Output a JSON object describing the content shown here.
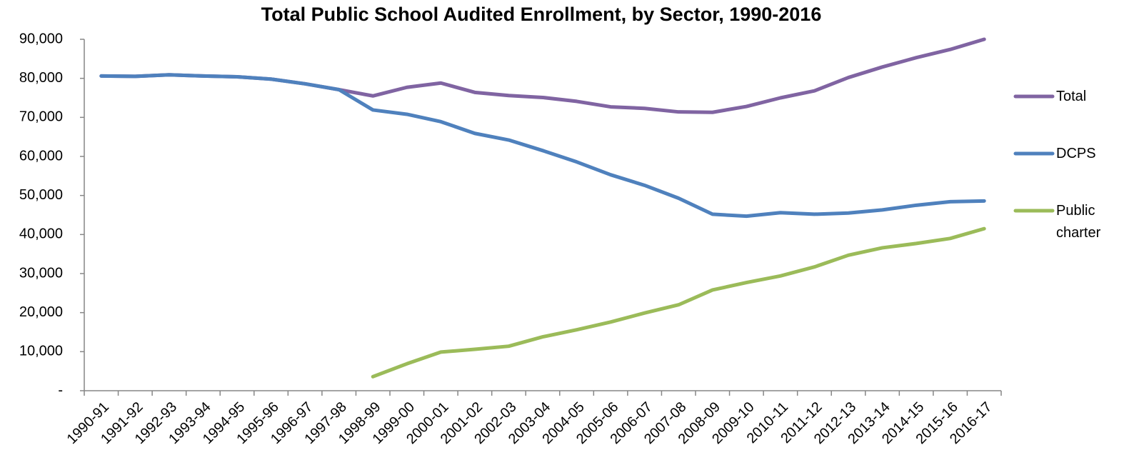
{
  "chart_data": {
    "type": "line",
    "title": "Total Public School Audited Enrollment, by Sector, 1990-2016",
    "categories": [
      "1990-91",
      "1991-92",
      "1992-93",
      "1993-94",
      "1994-95",
      "1995-96",
      "1996-97",
      "1997-98",
      "1998-99",
      "1999-00",
      "2000-01",
      "2001-02",
      "2002-03",
      "2003-04",
      "2004-05",
      "2005-06",
      "2006-07",
      "2007-08",
      "2008-09",
      "2009-10",
      "2010-11",
      "2011-12",
      "2012-13",
      "2013-14",
      "2014-15",
      "2015-16",
      "2016-17"
    ],
    "series": [
      {
        "name": "Total",
        "color": "#8064a2",
        "values": [
          80600,
          80500,
          80900,
          80600,
          80400,
          79800,
          78600,
          77100,
          75500,
          77700,
          78800,
          76400,
          75600,
          75100,
          74100,
          72700,
          72300,
          71400,
          71300,
          72800,
          75000,
          76800,
          80200,
          82900,
          85300,
          87400,
          90000
        ]
      },
      {
        "name": "DCPS",
        "color": "#4f81bd",
        "values": [
          80600,
          80500,
          80900,
          80600,
          80400,
          79800,
          78600,
          77100,
          71900,
          70800,
          68900,
          65900,
          64200,
          61500,
          58600,
          55300,
          52600,
          49300,
          45200,
          44700,
          45600,
          45200,
          45500,
          46300,
          47500,
          48400,
          48600
        ]
      },
      {
        "name": "Public charter",
        "color": "#9bbb59",
        "values": [
          null,
          null,
          null,
          null,
          null,
          null,
          null,
          null,
          3600,
          6900,
          9900,
          10600,
          11400,
          13800,
          15600,
          17600,
          19900,
          22000,
          25800,
          27700,
          29400,
          31700,
          34700,
          36600,
          37700,
          39000,
          41500
        ]
      }
    ],
    "ylim": [
      0,
      90000
    ],
    "yticks": [
      {
        "value": 0,
        "label": "-"
      },
      {
        "value": 10000,
        "label": "10,000"
      },
      {
        "value": 20000,
        "label": "20,000"
      },
      {
        "value": 30000,
        "label": "30,000"
      },
      {
        "value": 40000,
        "label": "40,000"
      },
      {
        "value": 50000,
        "label": "50,000"
      },
      {
        "value": 60000,
        "label": "60,000"
      },
      {
        "value": 70000,
        "label": "70,000"
      },
      {
        "value": 80000,
        "label": "80,000"
      },
      {
        "value": 90000,
        "label": "90,000"
      }
    ],
    "grid": false,
    "legend": "right"
  }
}
